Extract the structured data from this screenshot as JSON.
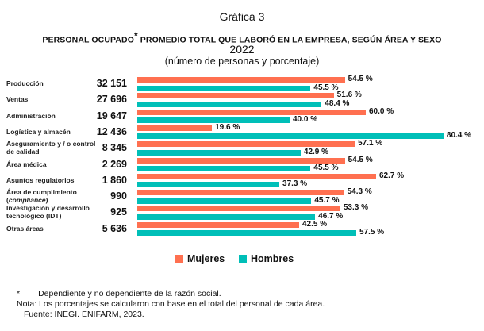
{
  "title": "Gráfica 3",
  "subtitle_main": "PERSONAL OCUPADO",
  "subtitle_mark": "*",
  "subtitle_rest": " PROMEDIO TOTAL QUE LABORÓ EN LA EMPRESA, SEGÚN ÁREA Y SEXO",
  "year": "2022",
  "units": "(número de personas y porcentaje)",
  "colors": {
    "mujeres": "#FF7050",
    "hombres": "#00BFB8"
  },
  "chart_data": {
    "type": "bar",
    "orientation": "horizontal",
    "categories": [
      {
        "label": [
          "Producción"
        ],
        "total": "32 151"
      },
      {
        "label": [
          "Ventas"
        ],
        "total": "27 696"
      },
      {
        "label": [
          "Administración"
        ],
        "total": "19 647"
      },
      {
        "label": [
          "Logística y almacén"
        ],
        "total": "12 436"
      },
      {
        "label": [
          "Aseguramiento y / o control",
          "de calidad"
        ],
        "total": "8 345"
      },
      {
        "label": [
          "Área médica"
        ],
        "total": "2 269"
      },
      {
        "label": [
          "Asuntos regulatorios"
        ],
        "total": "1 860"
      },
      {
        "label": [
          "Área de cumplimiento",
          "(compliance)"
        ],
        "total": "990"
      },
      {
        "label": [
          "Investigación y desarrollo",
          "tecnológico (IDT)"
        ],
        "total": "925"
      },
      {
        "label": [
          "Otras áreas"
        ],
        "total": "5 636"
      }
    ],
    "series": [
      {
        "name": "Mujeres",
        "values": [
          54.5,
          51.6,
          60.0,
          19.6,
          57.1,
          54.5,
          62.7,
          54.3,
          53.3,
          42.5
        ]
      },
      {
        "name": "Hombres",
        "values": [
          45.5,
          48.4,
          40.0,
          80.4,
          42.9,
          45.5,
          37.3,
          45.7,
          46.7,
          57.5
        ]
      }
    ],
    "value_suffix": " %",
    "legend_position": "bottom",
    "grid": false
  },
  "footnotes": {
    "mark": "*",
    "asterisk": "Dependiente y no dependiente de la razón social.",
    "nota": "Nota: Los porcentajes se calcularon con base en el total del personal de cada área.",
    "fuente": "Fuente: INEGI. ENIFARM, 2023."
  }
}
